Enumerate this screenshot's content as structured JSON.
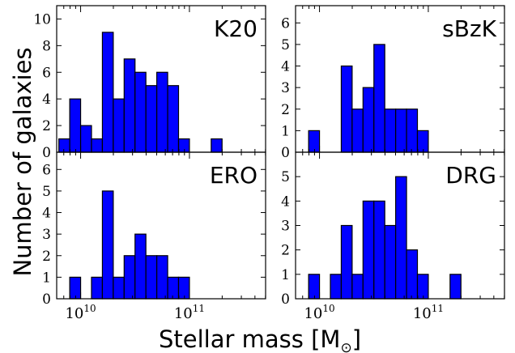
{
  "figure": {
    "ylabel": "Number of galaxies",
    "xlabel_main": "Stellar mass [M",
    "xlabel_sub": "⊙",
    "xlabel_close": "]"
  },
  "chart_data": [
    {
      "type": "bar",
      "panel": "top-left",
      "label": "K20",
      "x_scale": "log",
      "xlim": [
        6000000000.0,
        500000000000.0
      ],
      "ylim": [
        0,
        11
      ],
      "yticks": [
        0,
        2,
        4,
        6,
        8,
        10
      ],
      "xticks": [],
      "bin_edges_log10": [
        9.8,
        9.9,
        10.0,
        10.1,
        10.2,
        10.3,
        10.4,
        10.5,
        10.6,
        10.7,
        10.8,
        10.9,
        11.0,
        11.1,
        11.2,
        11.3,
        11.4,
        11.5,
        11.6
      ],
      "values": [
        1,
        4,
        2,
        1,
        9,
        4,
        7,
        6,
        5,
        6,
        5,
        1,
        0,
        1
      ],
      "bin_start_log10": [
        9.8,
        9.9,
        10.0,
        10.1,
        10.2,
        10.3,
        10.4,
        10.5,
        10.6,
        10.7,
        10.8,
        10.9,
        11.1,
        11.2
      ],
      "bar_color": "#0000ff"
    },
    {
      "type": "bar",
      "panel": "top-right",
      "label": "sBzK",
      "x_scale": "log",
      "xlim": [
        6000000000.0,
        500000000000.0
      ],
      "ylim": [
        0,
        6.8
      ],
      "yticks": [
        0,
        1,
        2,
        3,
        4,
        5,
        6
      ],
      "xticks": [],
      "values": [
        1,
        4,
        2,
        3,
        5,
        2,
        2,
        2,
        1
      ],
      "bin_start_log10": [
        9.9,
        10.2,
        10.3,
        10.4,
        10.5,
        10.6,
        10.7,
        10.8,
        10.9
      ],
      "bar_color": "#0000ff"
    },
    {
      "type": "bar",
      "panel": "bottom-left",
      "label": "ERO",
      "x_scale": "log",
      "xlim": [
        6000000000.0,
        500000000000.0
      ],
      "ylim": [
        0,
        6.8
      ],
      "yticks": [
        0,
        1,
        2,
        3,
        4,
        5,
        6
      ],
      "xticks": [
        "10^10",
        "10^11"
      ],
      "values": [
        1,
        1,
        5,
        1,
        2,
        3,
        2,
        2,
        1,
        1
      ],
      "bin_start_log10": [
        9.9,
        10.1,
        10.2,
        10.3,
        10.4,
        10.5,
        10.6,
        10.7,
        10.8,
        10.9
      ],
      "bar_color": "#0000ff"
    },
    {
      "type": "bar",
      "panel": "bottom-right",
      "label": "DRG",
      "x_scale": "log",
      "xlim": [
        6000000000.0,
        500000000000.0
      ],
      "ylim": [
        0,
        6
      ],
      "yticks": [
        0,
        1,
        2,
        3,
        4,
        5
      ],
      "xticks": [
        "10^10",
        "10^11"
      ],
      "values": [
        1,
        1,
        3,
        1,
        4,
        4,
        3,
        5,
        2,
        1,
        1
      ],
      "bin_start_log10": [
        9.9,
        10.1,
        10.2,
        10.3,
        10.4,
        10.5,
        10.6,
        10.7,
        10.8,
        10.9,
        11.2
      ],
      "bar_color": "#0000ff"
    }
  ]
}
